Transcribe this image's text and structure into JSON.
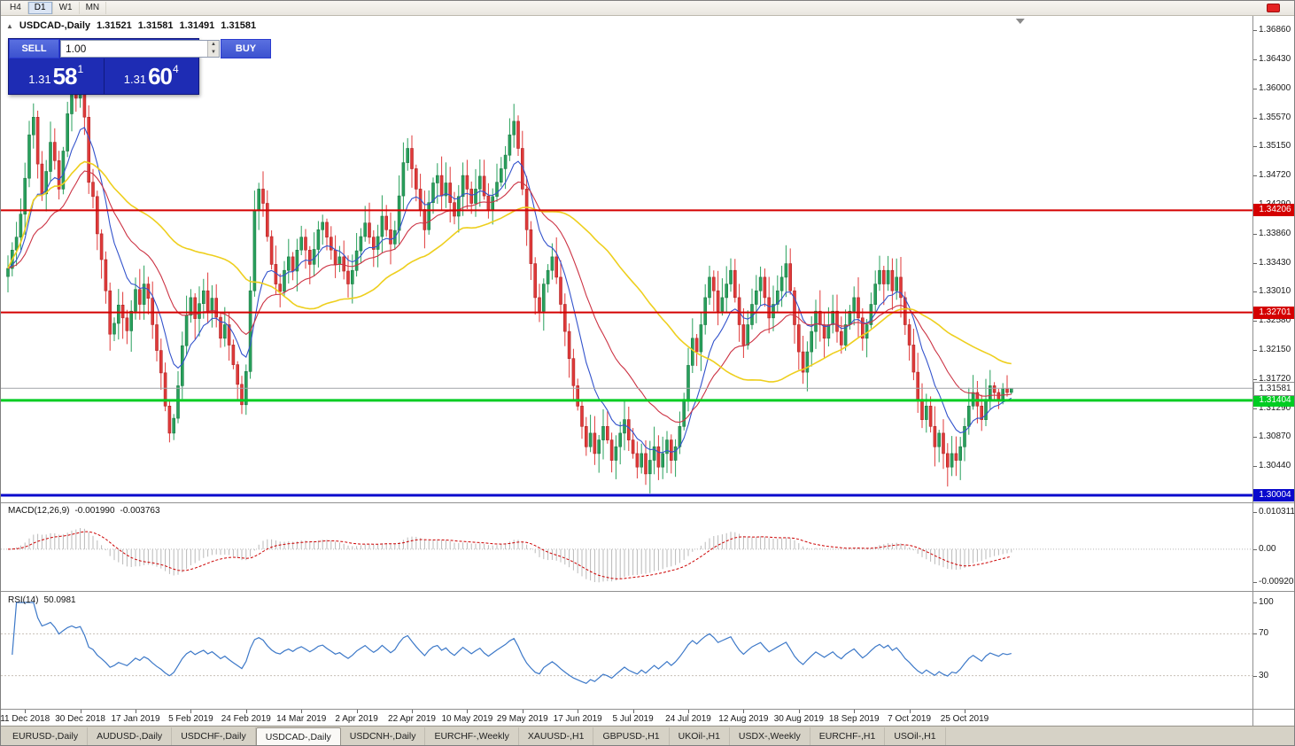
{
  "toolbar": {
    "timeframes": [
      {
        "label": "H4",
        "active": false
      },
      {
        "label": "D1",
        "active": true
      },
      {
        "label": "W1",
        "active": false
      },
      {
        "label": "MN",
        "active": false
      }
    ]
  },
  "icons": {
    "collapse": "▲",
    "spin_up": "▲",
    "spin_down": "▼"
  },
  "quote_line": {
    "symbol": "USDCAD-,Daily",
    "open": "1.31521",
    "high": "1.31581",
    "low": "1.31491",
    "close": "1.31581"
  },
  "one_click": {
    "sell_label": "SELL",
    "buy_label": "BUY",
    "volume": "1.00",
    "sell_price": {
      "base": "1.31",
      "pips": "58",
      "pipette": "1"
    },
    "buy_price": {
      "base": "1.31",
      "pips": "60",
      "pipette": "4"
    }
  },
  "price_axis": {
    "ticks": [
      "1.36860",
      "1.36430",
      "1.36000",
      "1.35570",
      "1.35150",
      "1.34720",
      "1.34290",
      "1.33860",
      "1.33430",
      "1.33010",
      "1.32580",
      "1.32150",
      "1.31720",
      "1.31290",
      "1.30870",
      "1.30440"
    ]
  },
  "hlines": [
    {
      "name": "resistance-upper",
      "price": 1.34206,
      "label": "1.34206",
      "color": "#d40000",
      "width": 2
    },
    {
      "name": "resistance-lower",
      "price": 1.32701,
      "label": "1.32701",
      "color": "#d40000",
      "width": 2
    },
    {
      "name": "support-green",
      "price": 1.31404,
      "label": "1.31404",
      "color": "#00cc22",
      "width": 3
    },
    {
      "name": "level-blue",
      "price": 1.30004,
      "label": "1.30004",
      "color": "#0808cc",
      "width": 3
    }
  ],
  "bid_line": {
    "price": 1.31581,
    "label": "1.31581"
  },
  "chart_data": {
    "type": "candlestick",
    "symbol": "USDCAD",
    "timeframe": "Daily",
    "ylim": [
      1.299,
      1.3706
    ],
    "dates": [
      "11 Dec 2018",
      "30 Dec 2018",
      "17 Jan 2019",
      "5 Feb 2019",
      "24 Feb 2019",
      "14 Mar 2019",
      "2 Apr 2019",
      "22 Apr 2019",
      "10 May 2019",
      "29 May 2019",
      "17 Jun 2019",
      "5 Jul 2019",
      "24 Jul 2019",
      "12 Aug 2019",
      "30 Aug 2019",
      "18 Sep 2019",
      "7 Oct 2019",
      "25 Oct 2019"
    ],
    "closes": [
      1.3335,
      1.3362,
      1.3381,
      1.3415,
      1.3468,
      1.3532,
      1.3558,
      1.3489,
      1.3445,
      1.3478,
      1.3521,
      1.3494,
      1.3452,
      1.3508,
      1.3563,
      1.3598,
      1.3586,
      1.3612,
      1.3558,
      1.3462,
      1.3441,
      1.3386,
      1.3348,
      1.3302,
      1.3238,
      1.3254,
      1.3281,
      1.3262,
      1.3243,
      1.3272,
      1.3304,
      1.3282,
      1.3312,
      1.3291,
      1.3252,
      1.3214,
      1.3181,
      1.3132,
      1.3092,
      1.3114,
      1.3162,
      1.3221,
      1.3266,
      1.3292,
      1.3261,
      1.3283,
      1.3302,
      1.3272,
      1.3291,
      1.3263,
      1.3232,
      1.3252,
      1.3222,
      1.3193,
      1.3164,
      1.3134,
      1.3183,
      1.3302,
      1.3421,
      1.3452,
      1.3431,
      1.3382,
      1.3341,
      1.3312,
      1.3301,
      1.3332,
      1.3352,
      1.3331,
      1.3362,
      1.3381,
      1.3362,
      1.3341,
      1.3363,
      1.3392,
      1.3403,
      1.3381,
      1.3362,
      1.3341,
      1.3352,
      1.3331,
      1.3312,
      1.3332,
      1.3361,
      1.3382,
      1.3402,
      1.3381,
      1.3363,
      1.3382,
      1.3412,
      1.3392,
      1.3371,
      1.3391,
      1.3442,
      1.3491,
      1.3512,
      1.3482,
      1.3452,
      1.3422,
      1.3392,
      1.3432,
      1.3461,
      1.3472,
      1.3442,
      1.3461,
      1.3432,
      1.3412,
      1.3441,
      1.3472,
      1.3452,
      1.3431,
      1.3452,
      1.3471,
      1.3442,
      1.3421,
      1.3441,
      1.3462,
      1.3482,
      1.3502,
      1.3532,
      1.3552,
      1.3512,
      1.3452,
      1.3392,
      1.3342,
      1.3292,
      1.3272,
      1.3312,
      1.3332,
      1.3352,
      1.3322,
      1.3282,
      1.3242,
      1.3202,
      1.3162,
      1.3132,
      1.3102,
      1.3072,
      1.3092,
      1.3062,
      1.3082,
      1.3102,
      1.3082,
      1.3052,
      1.3072,
      1.3092,
      1.3112,
      1.3082,
      1.3062,
      1.3042,
      1.3062,
      1.3032,
      1.3052,
      1.3072,
      1.3042,
      1.3062,
      1.3082,
      1.3052,
      1.3072,
      1.3102,
      1.3142,
      1.3192,
      1.3232,
      1.3212,
      1.3252,
      1.3292,
      1.3322,
      1.3302,
      1.3272,
      1.3292,
      1.3312,
      1.3332,
      1.3292,
      1.3252,
      1.3222,
      1.3252,
      1.3282,
      1.3302,
      1.3322,
      1.3292,
      1.3262,
      1.3282,
      1.3302,
      1.3322,
      1.3342,
      1.3302,
      1.3252,
      1.3212,
      1.3182,
      1.3212,
      1.3242,
      1.3272,
      1.3252,
      1.3232,
      1.3252,
      1.3272,
      1.3242,
      1.3222,
      1.3252,
      1.3272,
      1.3292,
      1.3262,
      1.3232,
      1.3252,
      1.3282,
      1.3312,
      1.3332,
      1.3312,
      1.3332,
      1.3302,
      1.3322,
      1.3292,
      1.3252,
      1.3222,
      1.3182,
      1.3142,
      1.3112,
      1.3132,
      1.3102,
      1.3072,
      1.3092,
      1.3062,
      1.3042,
      1.3062,
      1.3052,
      1.3072,
      1.3102,
      1.3132,
      1.3152,
      1.3132,
      1.3112,
      1.3142,
      1.3162,
      1.3152,
      1.3142,
      1.3158,
      1.3152,
      1.31581
    ],
    "last_candle": {
      "open": 1.31521,
      "high": 1.31581,
      "low": 1.31491,
      "close": 1.31581
    },
    "moving_averages": [
      {
        "period": 10,
        "type": "ema",
        "color": "#3353cc"
      },
      {
        "period": 25,
        "type": "ema",
        "color": "#cc3344"
      },
      {
        "period": 50,
        "type": "sma",
        "color": "#eecf1e"
      }
    ]
  },
  "macd": {
    "header": {
      "name": "MACD(12,26,9)",
      "value1": "-0.001990",
      "value2": "-0.003763"
    },
    "params": {
      "fast": 12,
      "slow": 26,
      "signal": 9
    },
    "axis": [
      {
        "text": "0.010311",
        "value": 0.010311
      },
      {
        "text": "0.00",
        "value": 0
      },
      {
        "text": "-0.009203",
        "value": -0.009203
      }
    ]
  },
  "rsi": {
    "header": {
      "name": "RSI(14)",
      "value": "50.0981"
    },
    "period": 14,
    "levels": [
      70,
      30
    ],
    "axis": [
      {
        "text": "100",
        "value": 100
      },
      {
        "text": "70",
        "value": 70
      },
      {
        "text": "30",
        "value": 30
      }
    ],
    "color": "#3c78c8"
  },
  "tabs": [
    {
      "label": "EURUSD-,Daily",
      "active": false
    },
    {
      "label": "AUDUSD-,Daily",
      "active": false
    },
    {
      "label": "USDCHF-,Daily",
      "active": false
    },
    {
      "label": "USDCAD-,Daily",
      "active": true
    },
    {
      "label": "USDCNH-,Daily",
      "active": false
    },
    {
      "label": "EURCHF-,Weekly",
      "active": false
    },
    {
      "label": "XAUUSD-,H1",
      "active": false
    },
    {
      "label": "GBPUSD-,H1",
      "active": false
    },
    {
      "label": "UKOil-,H1",
      "active": false
    },
    {
      "label": "USDX-,Weekly",
      "active": false
    },
    {
      "label": "EURCHF-,H1",
      "active": false
    },
    {
      "label": "USOil-,H1",
      "active": false
    }
  ],
  "colors": {
    "candle_up": "#28a05c",
    "candle_up_border": "#1d7a44",
    "candle_down": "#e03a3a",
    "candle_down_border": "#b02525",
    "bid_line": "#a0a4a8",
    "macd_histogram": "#b9b9b9",
    "macd_signal": "#cc0000"
  }
}
